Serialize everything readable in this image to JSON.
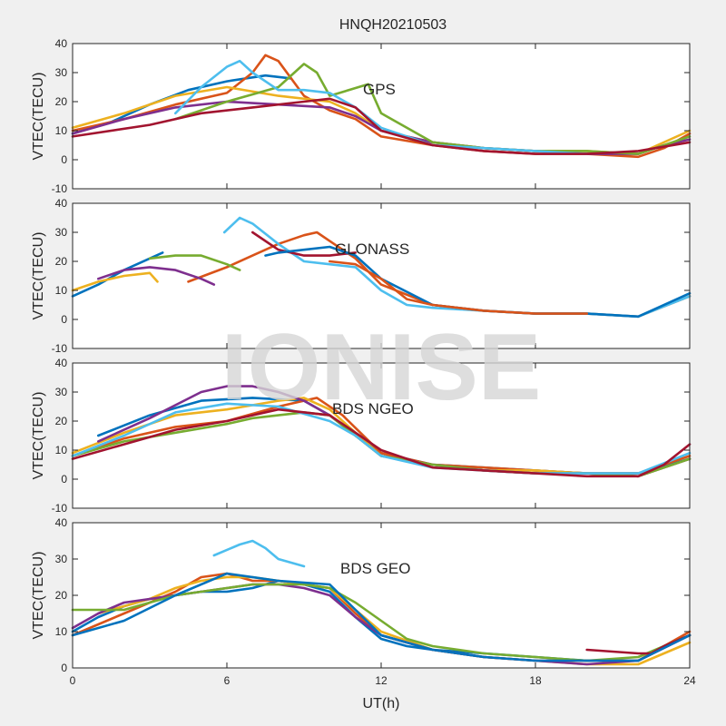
{
  "title": "HNQH20210503",
  "watermark": "IONISE",
  "xlabel": "UT(h)",
  "colors": [
    "#0072bd",
    "#d95319",
    "#edb120",
    "#7e2f8e",
    "#77ac30",
    "#4dbeee",
    "#a2142f"
  ],
  "chart_data": [
    {
      "type": "line",
      "label": "GPS",
      "ylabel": "VTEC(TECU)",
      "xlim": [
        0,
        24
      ],
      "ylim": [
        -10,
        40
      ],
      "yticks": [
        -10,
        0,
        10,
        20,
        30,
        40
      ],
      "xticks": [
        0,
        6,
        12,
        18,
        24
      ],
      "series": [
        {
          "x": [
            0,
            1.5,
            3,
            4.5,
            6,
            7.5,
            8.5
          ],
          "y": [
            9,
            13,
            19,
            24,
            27,
            29,
            28
          ]
        },
        {
          "x": [
            0,
            2,
            4,
            6,
            7,
            7.5,
            8,
            9,
            10,
            11,
            12,
            14,
            16,
            18,
            20,
            22,
            23,
            24
          ],
          "y": [
            10,
            14,
            19,
            23,
            30,
            36,
            34,
            22,
            17,
            14,
            8,
            5,
            3,
            2,
            2,
            1,
            4,
            9
          ]
        },
        {
          "x": [
            0,
            2,
            4,
            6,
            8,
            10,
            11,
            12,
            14,
            16,
            18,
            20,
            22,
            24
          ],
          "y": [
            11,
            16,
            22,
            25,
            22,
            20,
            16,
            10,
            6,
            4,
            3,
            3,
            2,
            10
          ]
        },
        {
          "x": [
            0,
            2,
            4,
            6,
            8,
            10,
            11,
            12,
            13,
            14,
            16,
            18,
            20,
            22,
            23,
            24
          ],
          "y": [
            9,
            14,
            18,
            20,
            19,
            18,
            15,
            10,
            8,
            6,
            4,
            3,
            2,
            2,
            5,
            7
          ]
        },
        {
          "x": [
            4,
            6,
            8,
            9,
            9.5,
            10,
            11.5,
            12,
            14,
            16,
            18,
            20,
            22,
            24
          ],
          "y": [
            14,
            20,
            25,
            33,
            30,
            22,
            26,
            16,
            6,
            4,
            3,
            3,
            2,
            8
          ]
        },
        {
          "x": [
            4,
            5,
            6,
            6.5,
            7,
            8,
            9,
            10,
            11,
            12,
            14,
            16,
            18,
            20
          ],
          "y": [
            16,
            25,
            32,
            34,
            30,
            24,
            24,
            23,
            18,
            11,
            5,
            4,
            3,
            2
          ]
        },
        {
          "x": [
            0,
            3,
            5,
            7,
            9,
            10,
            11,
            12,
            14,
            16,
            18,
            20,
            22,
            24
          ],
          "y": [
            8,
            12,
            16,
            18,
            20,
            21,
            18,
            10,
            5,
            3,
            2,
            2,
            3,
            6
          ]
        }
      ]
    },
    {
      "type": "line",
      "label": "GLONASS",
      "ylabel": "VTEC(TECU)",
      "xlim": [
        0,
        24
      ],
      "ylim": [
        -10,
        40
      ],
      "yticks": [
        -10,
        0,
        10,
        20,
        30,
        40
      ],
      "xticks": [
        0,
        6,
        12,
        18,
        24
      ],
      "series": [
        {
          "x": [
            0,
            1,
            2,
            3,
            3.5
          ],
          "y": [
            8,
            12,
            17,
            21,
            23
          ]
        },
        {
          "x": [
            4.5,
            6,
            7,
            8,
            9,
            9.5,
            10,
            11,
            12,
            14,
            16,
            18,
            20,
            22,
            24
          ],
          "y": [
            13,
            18,
            22,
            26,
            29,
            30,
            27,
            21,
            12,
            5,
            3,
            2,
            2,
            1,
            8
          ]
        },
        {
          "x": [
            0,
            1,
            2,
            3,
            3.3
          ],
          "y": [
            10,
            13,
            15,
            16,
            13
          ]
        },
        {
          "x": [
            1,
            2,
            3,
            4,
            5,
            5.5
          ],
          "y": [
            14,
            17,
            18,
            17,
            14,
            12
          ]
        },
        {
          "x": [
            3,
            4,
            5,
            6,
            6.5
          ],
          "y": [
            21,
            22,
            22,
            19,
            17
          ]
        },
        {
          "x": [
            5.9,
            6.5,
            7,
            8,
            9,
            10,
            11,
            12,
            13,
            14,
            16,
            18,
            20,
            22,
            24
          ],
          "y": [
            30,
            35,
            33,
            26,
            20,
            19,
            18,
            10,
            5,
            4,
            3,
            2,
            2,
            1,
            8
          ]
        },
        {
          "x": [
            7,
            8,
            9,
            10,
            11
          ],
          "y": [
            30,
            24,
            22,
            22,
            23
          ]
        },
        {
          "x": [
            7.5,
            8,
            9,
            10,
            11,
            12,
            14,
            16,
            18,
            20,
            22,
            24
          ],
          "y": [
            22,
            23,
            24,
            25,
            22,
            14,
            5,
            3,
            2,
            2,
            1,
            9
          ]
        },
        {
          "x": [
            10,
            11,
            12,
            13,
            14,
            16,
            18,
            20
          ],
          "y": [
            20,
            19,
            14,
            7,
            5,
            3,
            2,
            2
          ]
        }
      ]
    },
    {
      "type": "line",
      "label": "BDS NGEO",
      "ylabel": "VTEC(TECU)",
      "xlim": [
        0,
        24
      ],
      "ylim": [
        -10,
        40
      ],
      "yticks": [
        -10,
        0,
        10,
        20,
        30,
        40
      ],
      "xticks": [
        0,
        6,
        12,
        18,
        24
      ],
      "series": [
        {
          "x": [
            1,
            3,
            5,
            7,
            9,
            10,
            11,
            12,
            14,
            16,
            18,
            20,
            22,
            24
          ],
          "y": [
            15,
            22,
            27,
            28,
            27,
            22,
            15,
            9,
            5,
            4,
            3,
            2,
            2,
            7
          ]
        },
        {
          "x": [
            0,
            2,
            4,
            6,
            8,
            9.5,
            10.5,
            12,
            14,
            16,
            18,
            20,
            22,
            24
          ],
          "y": [
            8,
            14,
            18,
            20,
            25,
            28,
            22,
            9,
            5,
            4,
            3,
            2,
            2,
            8
          ]
        },
        {
          "x": [
            0,
            2,
            4,
            6,
            8,
            9,
            10,
            11,
            12,
            14,
            16,
            18,
            20,
            22,
            24
          ],
          "y": [
            9,
            16,
            22,
            24,
            27,
            28,
            24,
            16,
            8,
            5,
            3,
            3,
            2,
            1,
            7
          ]
        },
        {
          "x": [
            1,
            3,
            5,
            6,
            7,
            8,
            9,
            10,
            11,
            12,
            14,
            16,
            18,
            20,
            22,
            24
          ],
          "y": [
            13,
            21,
            30,
            32,
            32,
            30,
            27,
            22,
            15,
            8,
            5,
            3,
            2,
            2,
            1,
            7
          ]
        },
        {
          "x": [
            0,
            2,
            4,
            6,
            7,
            8,
            9,
            10,
            11,
            12,
            14,
            16,
            18,
            20,
            22,
            24
          ],
          "y": [
            8,
            13,
            16,
            19,
            21,
            22,
            23,
            22,
            15,
            8,
            5,
            3,
            2,
            2,
            1,
            7
          ]
        },
        {
          "x": [
            0,
            2,
            4,
            6,
            8,
            10,
            11,
            12,
            14,
            16,
            18,
            20,
            22,
            24
          ],
          "y": [
            8,
            15,
            23,
            26,
            25,
            20,
            15,
            8,
            4,
            3,
            2,
            2,
            2,
            9
          ]
        },
        {
          "x": [
            0,
            2,
            4,
            6,
            8,
            10,
            12,
            14,
            16,
            18,
            20,
            22,
            23,
            24
          ],
          "y": [
            7,
            12,
            17,
            20,
            24,
            22,
            10,
            4,
            3,
            2,
            1,
            1,
            5,
            12
          ]
        }
      ]
    },
    {
      "type": "line",
      "label": "BDS GEO",
      "ylabel": "VTEC(TECU)",
      "xlim": [
        0,
        24
      ],
      "ylim": [
        0,
        40
      ],
      "yticks": [
        0,
        10,
        20,
        30,
        40
      ],
      "xticks": [
        0,
        6,
        12,
        18,
        24
      ],
      "series": [
        {
          "x": [
            0,
            1,
            2,
            3,
            4,
            5,
            6,
            7,
            8,
            9,
            10,
            11,
            12,
            13,
            14,
            16,
            18,
            20,
            22,
            24
          ],
          "y": [
            10,
            14,
            17,
            19,
            20,
            21,
            21,
            22,
            24,
            23,
            21,
            14,
            8,
            6,
            5,
            4,
            3,
            2,
            2,
            9
          ]
        },
        {
          "x": [
            0,
            1,
            2,
            3,
            4,
            5,
            6,
            7,
            8,
            9,
            10,
            11,
            12,
            14,
            16,
            18,
            20,
            22,
            24
          ],
          "y": [
            9,
            12,
            15,
            18,
            21,
            25,
            26,
            24,
            24,
            23,
            22,
            15,
            9,
            5,
            3,
            2,
            2,
            2,
            10
          ]
        },
        {
          "x": [
            1,
            3,
            4,
            5,
            6,
            7,
            8,
            9,
            10,
            11,
            12,
            14,
            16,
            18,
            20,
            22,
            24
          ],
          "y": [
            15,
            19,
            22,
            24,
            25,
            25,
            24,
            23,
            22,
            16,
            10,
            5,
            3,
            2,
            1,
            1,
            7
          ]
        },
        {
          "x": [
            0,
            1,
            2,
            3,
            4,
            5,
            6,
            7,
            8,
            9,
            10,
            11,
            12,
            13,
            14,
            16,
            18,
            20,
            22,
            24
          ],
          "y": [
            11,
            15,
            18,
            19,
            20,
            21,
            22,
            23,
            23,
            22,
            20,
            14,
            9,
            7,
            5,
            3,
            2,
            1,
            2,
            9
          ]
        },
        {
          "x": [
            0,
            1,
            2,
            3,
            4,
            5,
            6,
            7,
            8,
            9,
            10,
            11,
            12,
            13,
            14,
            16,
            18,
            20,
            22,
            24
          ],
          "y": [
            16,
            16,
            16,
            18,
            20,
            21,
            22,
            23,
            23,
            23,
            22,
            18,
            13,
            8,
            6,
            4,
            3,
            2,
            3,
            9
          ]
        },
        {
          "x": [
            5.5,
            6.5,
            7,
            7.5,
            8,
            9
          ],
          "y": [
            31,
            34,
            35,
            33,
            30,
            28
          ]
        },
        {
          "x": [
            20,
            21,
            22,
            22.5,
            23,
            24
          ],
          "y": [
            5,
            4.5,
            4,
            4,
            6,
            9
          ]
        },
        {
          "x": [
            0,
            2,
            4,
            6,
            8,
            10,
            11,
            12,
            14,
            16,
            18,
            20,
            22,
            24
          ],
          "y": [
            9,
            13,
            20,
            26,
            24,
            23,
            16,
            9,
            5,
            3,
            2,
            2,
            2,
            9
          ]
        }
      ]
    }
  ]
}
